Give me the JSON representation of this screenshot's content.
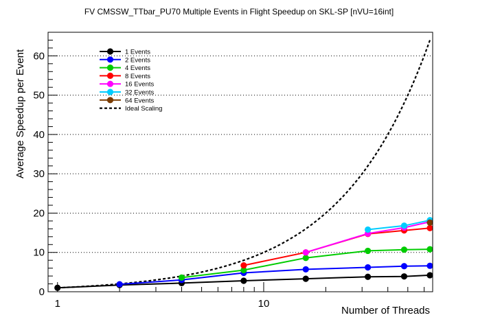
{
  "chart_data": {
    "type": "line",
    "title": "FV CMSSW_TTbar_PU70 Multiple Events in Flight Speedup on SKL-SP [nVU=16int]",
    "xlabel": "Number of Threads",
    "ylabel": "Average Speedup per Event",
    "x_scale": "log",
    "xlim": [
      0.9,
      66
    ],
    "ylim": [
      0,
      66
    ],
    "x_tick_labels": [
      {
        "value": 1,
        "label": "1"
      },
      {
        "value": 10,
        "label": "10"
      }
    ],
    "y_ticks": [
      0,
      10,
      20,
      30,
      40,
      50,
      60
    ],
    "grid": "horizontal dotted",
    "legend_position": "top-left",
    "series": [
      {
        "name": "1 Events",
        "color": "#000000",
        "x": [
          1,
          2,
          4,
          8,
          16,
          32,
          48,
          64
        ],
        "y": [
          1.0,
          1.7,
          2.2,
          2.8,
          3.3,
          3.8,
          3.9,
          4.2
        ]
      },
      {
        "name": "2 Events",
        "color": "#0000ff",
        "x": [
          2,
          4,
          8,
          16,
          32,
          48,
          64
        ],
        "y": [
          1.9,
          3.0,
          4.8,
          5.7,
          6.2,
          6.5,
          6.6
        ]
      },
      {
        "name": "4 Events",
        "color": "#00cc00",
        "x": [
          4,
          8,
          16,
          32,
          48,
          64
        ],
        "y": [
          3.6,
          5.5,
          8.6,
          10.4,
          10.7,
          10.8
        ]
      },
      {
        "name": "8 Events",
        "color": "#ff0000",
        "x": [
          8,
          16,
          32,
          48,
          64
        ],
        "y": [
          6.7,
          10.0,
          14.7,
          15.6,
          16.2
        ]
      },
      {
        "name": "16 Events",
        "color": "#ff00ff",
        "x": [
          16,
          32,
          48,
          64
        ],
        "y": [
          10.0,
          14.8,
          16.3,
          17.8
        ]
      },
      {
        "name": "32 Events",
        "color": "#00ccff",
        "x": [
          32,
          48,
          64
        ],
        "y": [
          15.8,
          16.8,
          18.2
        ]
      },
      {
        "name": "64 Events",
        "color": "#7a3b00",
        "x": [
          64
        ],
        "y": [
          17.6
        ]
      },
      {
        "name": "Ideal Scaling",
        "color": "#000000",
        "dashed": true,
        "x": [
          1,
          2,
          4,
          8,
          16,
          32,
          64
        ],
        "y": [
          1,
          2,
          4,
          8,
          16,
          32,
          64
        ]
      }
    ]
  }
}
